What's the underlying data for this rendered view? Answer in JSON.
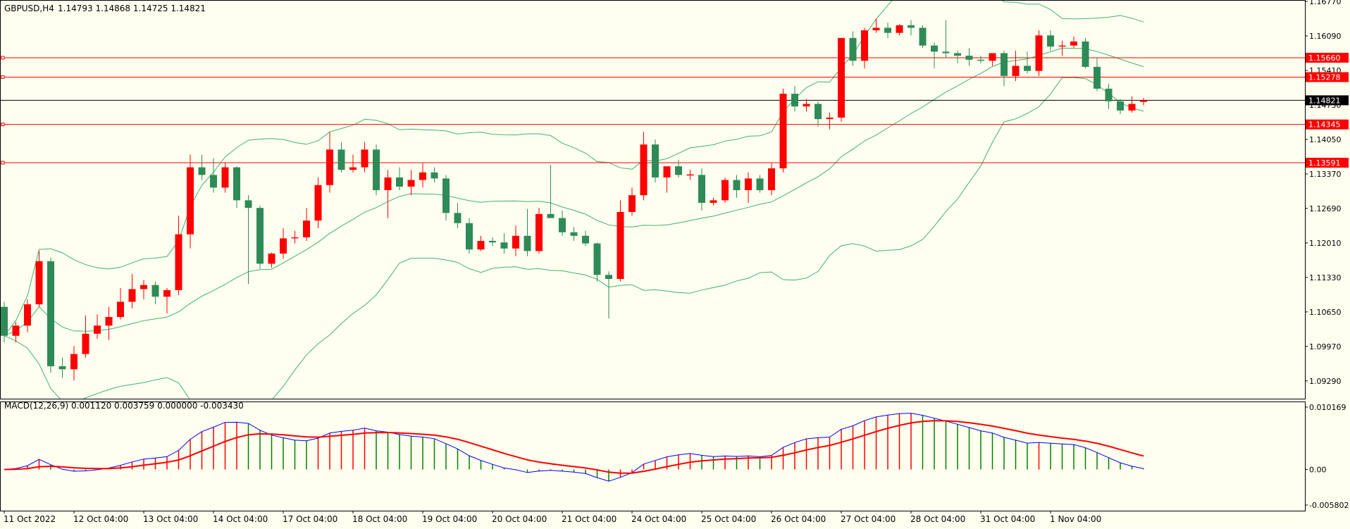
{
  "colors": {
    "background": "#fffff0",
    "bull": "#ff0000",
    "bear": "#2e8b57",
    "bands": "#3cb371",
    "level_line": "#ff0000",
    "current_line": "#000000",
    "macd_line": "#0000ff",
    "signal_line": "#ff0000",
    "text": "#000000",
    "frame": "#000000"
  },
  "chart_data": [
    {
      "type": "candlestick",
      "title": "GBPUSD,H4",
      "ohlc_header": [
        "1.14793",
        "1.14868",
        "1.14725",
        "1.14821"
      ],
      "ylim": [
        1.0894,
        1.1677
      ],
      "y_ticks": [
        {
          "value": 1.1677,
          "label": "1.16770"
        },
        {
          "value": 1.1609,
          "label": "1.16090"
        },
        {
          "value": 1.1541,
          "label": "1.15410"
        },
        {
          "value": 1.1473,
          "label": "1.14730"
        },
        {
          "value": 1.1405,
          "label": "1.14050"
        },
        {
          "value": 1.1337,
          "label": "1.13370"
        },
        {
          "value": 1.1269,
          "label": "1.12690"
        },
        {
          "value": 1.1201,
          "label": "1.12010"
        },
        {
          "value": 1.1133,
          "label": "1.11330"
        },
        {
          "value": 1.1065,
          "label": "1.10650"
        },
        {
          "value": 1.0997,
          "label": "1.09970"
        },
        {
          "value": 1.0929,
          "label": "1.09290"
        }
      ],
      "horizontal_levels": [
        {
          "value": 1.1566,
          "label": "1.15660"
        },
        {
          "value": 1.15278,
          "label": "1.15278"
        },
        {
          "value": 1.14345,
          "label": "1.14345"
        },
        {
          "value": 1.13591,
          "label": "1.13591"
        }
      ],
      "current_price": {
        "value": 1.14821,
        "label": "1.14821"
      },
      "x_labels": [
        "11 Oct 2022",
        "12 Oct 04:00",
        "13 Oct 04:00",
        "14 Oct 04:00",
        "17 Oct 04:00",
        "18 Oct 04:00",
        "19 Oct 04:00",
        "20 Oct 04:00",
        "21 Oct 04:00",
        "24 Oct 04:00",
        "25 Oct 04:00",
        "26 Oct 04:00",
        "27 Oct 04:00",
        "28 Oct 04:00",
        "31 Oct 04:00",
        "1 Nov 04:00"
      ],
      "x_label_bar_index": [
        0,
        6,
        12,
        18,
        24,
        30,
        36,
        42,
        48,
        54,
        60,
        66,
        72,
        78,
        84,
        90
      ],
      "candles": [
        [
          1.1075,
          1.1085,
          1.1005,
          1.1018
        ],
        [
          1.1018,
          1.1045,
          1.1005,
          1.1038
        ],
        [
          1.1038,
          1.109,
          1.1025,
          1.108
        ],
        [
          1.108,
          1.1185,
          1.1075,
          1.1165
        ],
        [
          1.1165,
          1.1172,
          1.0945,
          1.0958
        ],
        [
          1.0958,
          1.0975,
          1.0935,
          1.0952
        ],
        [
          1.0952,
          1.0998,
          1.093,
          1.0982
        ],
        [
          1.0982,
          1.1058,
          1.0975,
          1.1022
        ],
        [
          1.1022,
          1.106,
          1.1012,
          1.1038
        ],
        [
          1.1038,
          1.1075,
          1.101,
          1.1055
        ],
        [
          1.1055,
          1.1112,
          1.105,
          1.1085
        ],
        [
          1.1085,
          1.114,
          1.1072,
          1.111
        ],
        [
          1.111,
          1.1128,
          1.109,
          1.1118
        ],
        [
          1.1118,
          1.1125,
          1.108,
          1.1095
        ],
        [
          1.1095,
          1.1112,
          1.1062,
          1.1108
        ],
        [
          1.1108,
          1.1255,
          1.1098,
          1.1218
        ],
        [
          1.1218,
          1.1375,
          1.119,
          1.135
        ],
        [
          1.135,
          1.1375,
          1.1325,
          1.1335
        ],
        [
          1.1335,
          1.1368,
          1.13,
          1.131
        ],
        [
          1.131,
          1.136,
          1.13,
          1.135
        ],
        [
          1.135,
          1.1352,
          1.127,
          1.1285
        ],
        [
          1.1285,
          1.1295,
          1.112,
          1.127
        ],
        [
          1.127,
          1.1275,
          1.115,
          1.116
        ],
        [
          1.116,
          1.1182,
          1.1152,
          1.118
        ],
        [
          1.118,
          1.123,
          1.117,
          1.121
        ],
        [
          1.121,
          1.1225,
          1.12,
          1.1212
        ],
        [
          1.1212,
          1.127,
          1.1205,
          1.1245
        ],
        [
          1.1245,
          1.133,
          1.123,
          1.1315
        ],
        [
          1.1315,
          1.142,
          1.13,
          1.1385
        ],
        [
          1.1385,
          1.14,
          1.134,
          1.1345
        ],
        [
          1.1345,
          1.1375,
          1.134,
          1.135
        ],
        [
          1.135,
          1.14,
          1.134,
          1.1385
        ],
        [
          1.1385,
          1.1395,
          1.1295,
          1.1305
        ],
        [
          1.1305,
          1.1345,
          1.125,
          1.133
        ],
        [
          1.133,
          1.135,
          1.1305,
          1.1312
        ],
        [
          1.1312,
          1.1345,
          1.1295,
          1.1325
        ],
        [
          1.1325,
          1.1358,
          1.131,
          1.134
        ],
        [
          1.134,
          1.135,
          1.132,
          1.1328
        ],
        [
          1.1328,
          1.1335,
          1.1245,
          1.126
        ],
        [
          1.126,
          1.128,
          1.123,
          1.124
        ],
        [
          1.124,
          1.125,
          1.118,
          1.1188
        ],
        [
          1.1188,
          1.1215,
          1.1185,
          1.1205
        ],
        [
          1.1205,
          1.1212,
          1.1195,
          1.1202
        ],
        [
          1.1202,
          1.122,
          1.118,
          1.119
        ],
        [
          1.119,
          1.1235,
          1.1175,
          1.1215
        ],
        [
          1.1215,
          1.1268,
          1.1175,
          1.1185
        ],
        [
          1.1185,
          1.127,
          1.118,
          1.1258
        ],
        [
          1.1258,
          1.1355,
          1.125,
          1.125
        ],
        [
          1.125,
          1.1265,
          1.1215,
          1.1222
        ],
        [
          1.1222,
          1.1232,
          1.1205,
          1.1215
        ],
        [
          1.1215,
          1.1225,
          1.1195,
          1.12
        ],
        [
          1.12,
          1.1202,
          1.1125,
          1.1138
        ],
        [
          1.1138,
          1.1145,
          1.1052,
          1.113
        ],
        [
          1.113,
          1.1285,
          1.1125,
          1.1262
        ],
        [
          1.1262,
          1.131,
          1.1255,
          1.1295
        ],
        [
          1.1295,
          1.142,
          1.1285,
          1.1395
        ],
        [
          1.1395,
          1.1405,
          1.132,
          1.133
        ],
        [
          1.133,
          1.1352,
          1.13,
          1.1352
        ],
        [
          1.1352,
          1.1365,
          1.133,
          1.1335
        ],
        [
          1.1335,
          1.1345,
          1.1325,
          1.1335
        ],
        [
          1.1335,
          1.1348,
          1.1265,
          1.128
        ],
        [
          1.128,
          1.129,
          1.1275,
          1.1285
        ],
        [
          1.1285,
          1.133,
          1.128,
          1.1325
        ],
        [
          1.1325,
          1.1335,
          1.129,
          1.1305
        ],
        [
          1.1305,
          1.134,
          1.128,
          1.1328
        ],
        [
          1.1328,
          1.1335,
          1.13,
          1.1305
        ],
        [
          1.1305,
          1.1358,
          1.1295,
          1.1348
        ],
        [
          1.1348,
          1.1505,
          1.134,
          1.1495
        ],
        [
          1.1495,
          1.151,
          1.146,
          1.147
        ],
        [
          1.147,
          1.1485,
          1.146,
          1.1475
        ],
        [
          1.1475,
          1.148,
          1.143,
          1.1445
        ],
        [
          1.1445,
          1.1458,
          1.1425,
          1.1448
        ],
        [
          1.1448,
          1.1605,
          1.144,
          1.1605
        ],
        [
          1.1605,
          1.1618,
          1.155,
          1.156
        ],
        [
          1.156,
          1.1625,
          1.1545,
          1.162
        ],
        [
          1.162,
          1.1643,
          1.1615,
          1.1625
        ],
        [
          1.1625,
          1.1635,
          1.1605,
          1.1615
        ],
        [
          1.1615,
          1.1632,
          1.161,
          1.163
        ],
        [
          1.163,
          1.164,
          1.161,
          1.1625
        ],
        [
          1.1625,
          1.163,
          1.1585,
          1.159
        ],
        [
          1.159,
          1.1596,
          1.1545,
          1.1578
        ],
        [
          1.1578,
          1.164,
          1.1565,
          1.1575
        ],
        [
          1.1575,
          1.158,
          1.1555,
          1.157
        ],
        [
          1.157,
          1.1585,
          1.155,
          1.1562
        ],
        [
          1.1562,
          1.157,
          1.1555,
          1.156
        ],
        [
          1.156,
          1.1575,
          1.155,
          1.1575
        ],
        [
          1.1575,
          1.158,
          1.151,
          1.153
        ],
        [
          1.153,
          1.158,
          1.152,
          1.155
        ],
        [
          1.155,
          1.1578,
          1.1535,
          1.154
        ],
        [
          1.154,
          1.162,
          1.153,
          1.161
        ],
        [
          1.161,
          1.162,
          1.158,
          1.1588
        ],
        [
          1.1588,
          1.16,
          1.157,
          1.159
        ],
        [
          1.159,
          1.1608,
          1.1585,
          1.1598
        ],
        [
          1.1598,
          1.1605,
          1.1545,
          1.1548
        ],
        [
          1.1548,
          1.1565,
          1.15,
          1.1505
        ],
        [
          1.1505,
          1.1515,
          1.1465,
          1.148
        ],
        [
          1.148,
          1.1485,
          1.1455,
          1.1462
        ],
        [
          1.1462,
          1.149,
          1.1458,
          1.1475
        ],
        [
          1.1479,
          1.1487,
          1.1472,
          1.1482
        ]
      ]
    },
    {
      "type": "macd",
      "title": "MACD(12,26,9) 0.001120 0.003759 0.000000 -0.003430",
      "params": "12,26,9",
      "values_header": [
        "0.001120",
        "0.003759",
        "0.000000",
        "-0.003430"
      ],
      "ylim": [
        -0.005802,
        0.010169
      ],
      "y_ticks": [
        {
          "value": 0.010169,
          "label": "0.010169"
        },
        {
          "value": 0.0,
          "label": "0.00"
        },
        {
          "value": -0.005802,
          "label": "-0.005802"
        }
      ]
    }
  ]
}
